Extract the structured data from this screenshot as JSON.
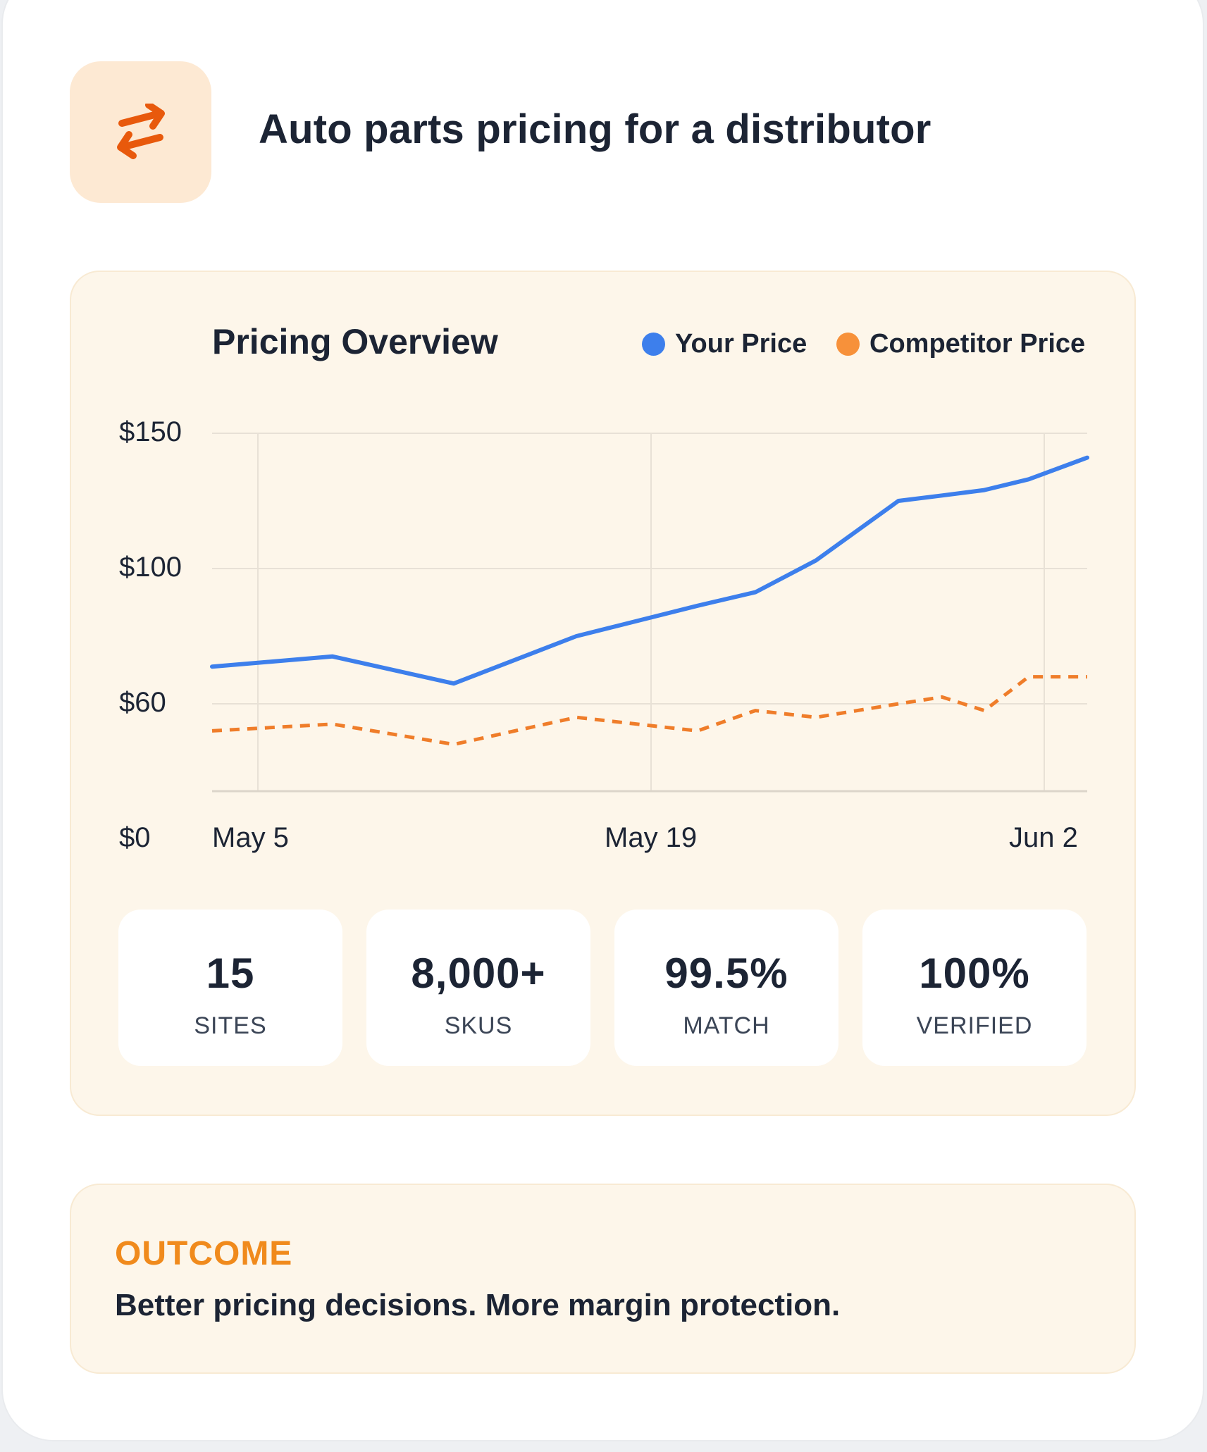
{
  "header": {
    "icon": "swap-arrows-icon",
    "title": "Auto parts pricing for a distributor"
  },
  "chart": {
    "title": "Pricing Overview",
    "legend": [
      {
        "label": "Your Price",
        "color": "#3d7fec"
      },
      {
        "label": "Competitor Price",
        "color": "#f7913a"
      }
    ]
  },
  "chart_data": {
    "type": "line",
    "title": "Pricing Overview",
    "xlabel": "",
    "ylabel": "",
    "x_tick_labels": [
      "May 5",
      "May 19",
      "Jun 2"
    ],
    "y_tick_labels": [
      "$150",
      "$100",
      "$60",
      "$0"
    ],
    "x": [
      "May 4",
      "May 8",
      "May 12",
      "May 16",
      "May 20",
      "May 22",
      "May 26",
      "May 28",
      "May 30",
      "May 31",
      "Jun 1",
      "Jun 2"
    ],
    "series": [
      {
        "name": "Your Price",
        "style": "solid",
        "color": "#3d7fec",
        "values": [
          71,
          74,
          66,
          80,
          89,
          93,
          103,
          125,
          127,
          129,
          133,
          141
        ]
      },
      {
        "name": "Competitor Price",
        "style": "dashed",
        "color": "#f7913a",
        "values": [
          52,
          54,
          48,
          56,
          52,
          58,
          56,
          60,
          62,
          58,
          68,
          68
        ]
      }
    ],
    "grid": true,
    "legend_position": "top-right"
  },
  "stats": [
    {
      "value": "15",
      "label": "SITES"
    },
    {
      "value": "8,000+",
      "label": "SKUS"
    },
    {
      "value": "99.5%",
      "label": "MATCH"
    },
    {
      "value": "100%",
      "label": "VERIFIED"
    }
  ],
  "outcome": {
    "label": "OUTCOME",
    "text": "Better pricing decisions. More margin protection."
  }
}
